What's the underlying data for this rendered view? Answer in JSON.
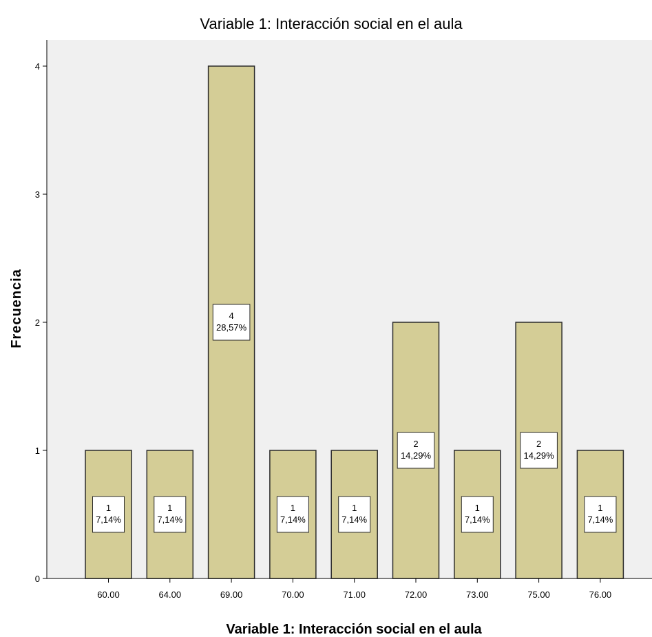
{
  "chart_data": {
    "type": "bar",
    "title": "Variable 1: Interacción social en el aula",
    "xlabel": "Variable 1: Interacción social en el aula",
    "ylabel": "Frecuencia",
    "categories": [
      "60.00",
      "64.00",
      "69.00",
      "70.00",
      "71.00",
      "72.00",
      "73.00",
      "75.00",
      "76.00"
    ],
    "values": [
      1,
      1,
      4,
      1,
      1,
      2,
      1,
      2,
      1
    ],
    "percent_labels": [
      "7,14%",
      "7,14%",
      "28,57%",
      "7,14%",
      "7,14%",
      "14,29%",
      "7,14%",
      "14,29%",
      "7,14%"
    ],
    "yticks": [
      "0",
      "1",
      "2",
      "3",
      "4"
    ],
    "ylim": [
      0,
      4.2
    ],
    "grid": false,
    "legend": "none",
    "colors": {
      "bar_fill": "#d4cd96",
      "bar_stroke": "#2b2b2b",
      "plot_bg": "#f0f0f0",
      "label_bg": "#ffffff"
    }
  }
}
